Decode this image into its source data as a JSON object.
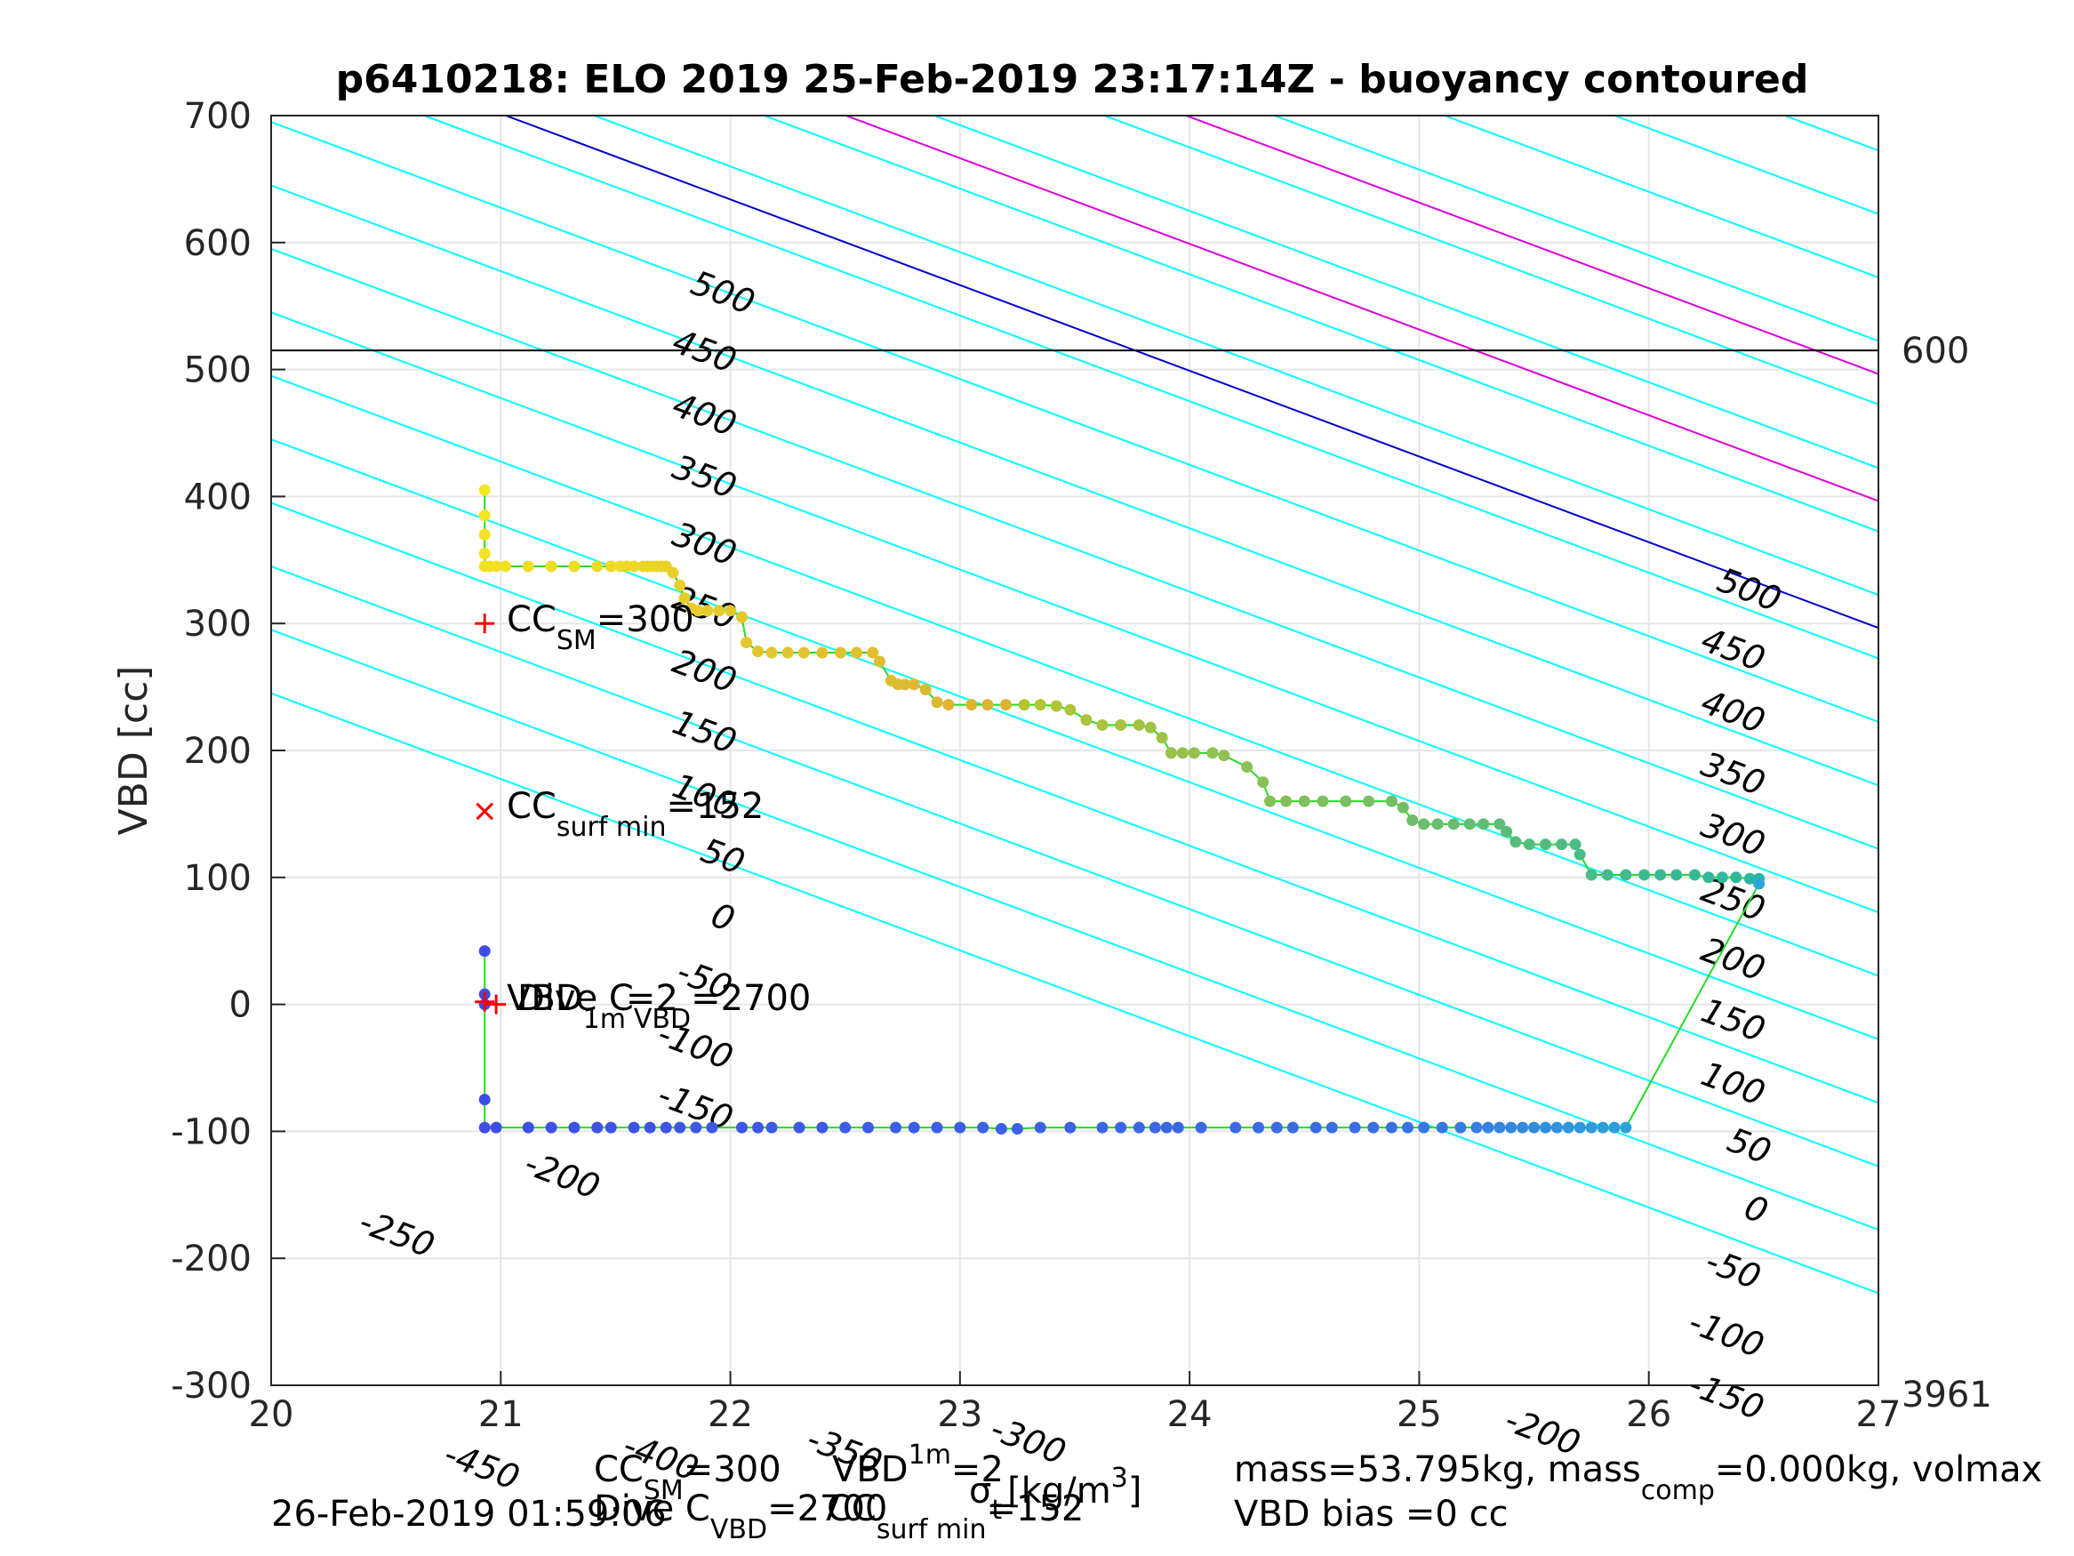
{
  "chart_data": {
    "type": "scatter",
    "title": "p6410218: ELO 2019 25-Feb-2019 23:17:14Z - buoyancy contoured",
    "ylabel": "VBD [cc]",
    "xlabel_parts": {
      "sigma": "σ",
      "t": "t",
      "units": "[kg/m",
      "units_sup": "3",
      "units_close": "]"
    },
    "xlim": [
      20,
      27
    ],
    "ylim": [
      -300,
      700
    ],
    "xticks": [
      20,
      21,
      22,
      23,
      24,
      25,
      26,
      27
    ],
    "yticks": [
      -300,
      -200,
      -100,
      0,
      100,
      200,
      300,
      400,
      500,
      600,
      700
    ],
    "grid": true,
    "contour_slope": -27,
    "contour_intercepts": [
      {
        "c": -450,
        "b0": 245
      },
      {
        "c": -400,
        "b0": 295
      },
      {
        "c": -350,
        "b0": 345
      },
      {
        "c": -300,
        "b0": 395
      },
      {
        "c": -250,
        "b0": 445
      },
      {
        "c": -200,
        "b0": 495
      },
      {
        "c": -150,
        "b0": 545
      },
      {
        "c": -100,
        "b0": 595
      },
      {
        "c": -50,
        "b0": 645
      },
      {
        "c": 0,
        "b0": 695
      },
      {
        "c": 50,
        "b0": 745
      },
      {
        "c": 100,
        "b0": 795
      },
      {
        "c": 150,
        "b0": 845
      },
      {
        "c": 200,
        "b0": 895
      },
      {
        "c": 250,
        "b0": 945
      },
      {
        "c": 300,
        "b0": 995
      },
      {
        "c": 350,
        "b0": 1045
      },
      {
        "c": 400,
        "b0": 1095
      },
      {
        "c": 450,
        "b0": 1145
      },
      {
        "c": 500,
        "b0": 1195
      }
    ],
    "contour_labels_left": [
      {
        "text": "500",
        "x": 21.95,
        "y": 552
      },
      {
        "text": "450",
        "x": 21.87,
        "y": 506
      },
      {
        "text": "400",
        "x": 21.87,
        "y": 456
      },
      {
        "text": "350",
        "x": 21.87,
        "y": 407
      },
      {
        "text": "300",
        "x": 21.87,
        "y": 354
      },
      {
        "text": "250",
        "x": 21.87,
        "y": 304
      },
      {
        "text": "200",
        "x": 21.87,
        "y": 254
      },
      {
        "text": "150",
        "x": 21.87,
        "y": 206
      },
      {
        "text": "100",
        "x": 21.87,
        "y": 156
      },
      {
        "text": "50",
        "x": 21.95,
        "y": 108
      },
      {
        "text": "0",
        "x": 21.95,
        "y": 60
      },
      {
        "text": "-50",
        "x": 21.87,
        "y": 11
      },
      {
        "text": "-100",
        "x": 21.83,
        "y": -41
      },
      {
        "text": "-150",
        "x": 21.83,
        "y": -89
      },
      {
        "text": "-200",
        "x": 21.25,
        "y": -143
      },
      {
        "text": "-250",
        "x": 20.53,
        "y": -189
      },
      {
        "text": "-300",
        "x": 23.28,
        "y": -352
      },
      {
        "text": "-350",
        "x": 22.48,
        "y": -360
      },
      {
        "text": "-400",
        "x": 21.68,
        "y": -365
      },
      {
        "text": "-450",
        "x": 20.9,
        "y": -372
      }
    ],
    "contour_labels_right": [
      {
        "text": "500",
        "x": 26.42,
        "y": 318
      },
      {
        "text": "450",
        "x": 26.35,
        "y": 271
      },
      {
        "text": "400",
        "x": 26.35,
        "y": 222
      },
      {
        "text": "350",
        "x": 26.35,
        "y": 173
      },
      {
        "text": "300",
        "x": 26.35,
        "y": 125
      },
      {
        "text": "250",
        "x": 26.35,
        "y": 74
      },
      {
        "text": "200",
        "x": 26.35,
        "y": 27
      },
      {
        "text": "150",
        "x": 26.35,
        "y": -21
      },
      {
        "text": "100",
        "x": 26.35,
        "y": -71
      },
      {
        "text": "50",
        "x": 26.42,
        "y": -120
      },
      {
        "text": "0",
        "x": 26.45,
        "y": -170
      },
      {
        "text": "-50",
        "x": 26.35,
        "y": -217
      },
      {
        "text": "-100",
        "x": 26.32,
        "y": -268
      },
      {
        "text": "-150",
        "x": 26.32,
        "y": -317
      },
      {
        "text": "-200",
        "x": 25.52,
        "y": -345
      }
    ],
    "highlight_lines": [
      {
        "kind": "magenta",
        "c": 200,
        "b0": 969
      },
      {
        "kind": "magenta",
        "c": 100,
        "b0": 869
      },
      {
        "kind": "blue",
        "c": 0,
        "b0": 769
      }
    ],
    "colors": {
      "contour": "#00ffff",
      "highlight_magenta": "#dd00dd",
      "highlight_blue": "#0000cc",
      "track": "#22dd22",
      "marker_red": "#ff0000",
      "depth_line": "#000000"
    },
    "depth_line": {
      "y": 515,
      "label_top": "600",
      "label_bottom": "3961"
    },
    "markers": [
      {
        "type": "plus",
        "x": 20.93,
        "y": 300
      },
      {
        "type": "x",
        "x": 20.93,
        "y": 152
      },
      {
        "type": "plus",
        "x": 20.93,
        "y": 2
      },
      {
        "type": "plus",
        "x": 20.98,
        "y": 0
      }
    ],
    "annotations": {
      "cc_sm": {
        "pre": "CC",
        "sub": "SM",
        "post": "=300"
      },
      "cc_surf": {
        "pre": "CC",
        "sub": "surf min",
        "post": "=152"
      },
      "vbd": {
        "pre": "VBD",
        "sub": "1m",
        "post": "=2"
      },
      "dive_c": {
        "pre": "Dive C",
        "sub": "VBD",
        "post": "=2700"
      }
    },
    "series": [
      {
        "phase": "climb",
        "x": [
          20.93,
          20.93,
          20.93,
          20.93,
          20.93,
          20.95,
          20.98,
          21.02,
          21.12,
          21.22,
          21.32,
          21.42,
          21.48,
          21.52,
          21.55,
          21.58,
          21.62,
          21.64,
          21.66,
          21.68,
          21.7,
          21.72,
          21.75,
          21.78,
          21.8,
          21.83,
          21.86,
          21.9,
          21.95,
          22.0,
          22.05,
          22.07,
          22.12,
          22.18,
          22.25,
          22.32,
          22.4,
          22.48,
          22.55,
          22.62,
          22.65,
          22.7,
          22.73,
          22.76,
          22.8,
          22.85,
          22.9,
          22.95,
          23.05,
          23.12,
          23.2,
          23.28,
          23.35,
          23.42,
          23.48,
          23.55,
          23.62,
          23.7,
          23.78,
          23.83,
          23.88,
          23.92,
          23.97,
          24.02,
          24.1,
          24.15,
          24.25,
          24.32,
          24.35,
          24.42,
          24.5,
          24.58,
          24.68,
          24.78,
          24.88,
          24.93,
          24.97,
          25.02,
          25.08,
          25.15,
          25.22,
          25.28,
          25.35,
          25.38,
          25.42,
          25.48,
          25.55,
          25.62,
          25.68,
          25.7,
          25.75,
          25.82,
          25.9,
          25.98,
          26.05,
          26.12,
          26.2,
          26.26,
          26.32,
          26.38,
          26.44,
          26.48
        ],
        "y": [
          405,
          385,
          370,
          355,
          345,
          345,
          345,
          345,
          345,
          345,
          345,
          345,
          345,
          345,
          345,
          345,
          345,
          345,
          345,
          345,
          345,
          345,
          340,
          330,
          320,
          312,
          310,
          310,
          310,
          310,
          305,
          285,
          278,
          277,
          277,
          277,
          277,
          277,
          277,
          277,
          270,
          255,
          252,
          252,
          252,
          248,
          238,
          236,
          236,
          236,
          236,
          236,
          236,
          235,
          232,
          224,
          220,
          220,
          220,
          218,
          210,
          198,
          198,
          198,
          198,
          196,
          187,
          175,
          160,
          160,
          160,
          160,
          160,
          160,
          160,
          155,
          145,
          142,
          142,
          142,
          142,
          142,
          142,
          136,
          128,
          126,
          126,
          126,
          126,
          118,
          102,
          102,
          102,
          102,
          102,
          102,
          102,
          100,
          100,
          100,
          99,
          99
        ]
      },
      {
        "phase": "dive",
        "x": [
          20.93,
          20.93,
          20.93,
          20.93,
          20.93,
          20.98,
          21.12,
          21.22,
          21.32,
          21.42,
          21.48,
          21.58,
          21.65,
          21.72,
          21.78,
          21.85,
          21.92,
          22.05,
          22.12,
          22.18,
          22.3,
          22.4,
          22.5,
          22.6,
          22.72,
          22.8,
          22.9,
          23.0,
          23.1,
          23.18,
          23.25,
          23.35,
          23.48,
          23.62,
          23.7,
          23.78,
          23.85,
          23.9,
          23.95,
          24.05,
          24.2,
          24.3,
          24.38,
          24.45,
          24.55,
          24.62,
          24.72,
          24.8,
          24.88,
          24.95,
          25.02,
          25.1,
          25.18,
          25.25,
          25.3,
          25.35,
          25.4,
          25.45,
          25.5,
          25.55,
          25.6,
          25.65,
          25.7,
          25.75,
          25.8,
          25.85,
          25.9,
          26.48
        ],
        "y": [
          42,
          8,
          0,
          -75,
          -97,
          -97,
          -97,
          -97,
          -97,
          -97,
          -97,
          -97,
          -97,
          -97,
          -97,
          -97,
          -97,
          -97,
          -97,
          -97,
          -97,
          -97,
          -97,
          -97,
          -97,
          -97,
          -97,
          -97,
          -97,
          -98,
          -98,
          -97,
          -97,
          -97,
          -97,
          -97,
          -97,
          -97,
          -97,
          -97,
          -97,
          -97,
          -97,
          -97,
          -97,
          -97,
          -97,
          -97,
          -97,
          -97,
          -97,
          -97,
          -97,
          -97,
          -97,
          -97,
          -97,
          -97,
          -97,
          -97,
          -97,
          -97,
          -97,
          -97,
          -97,
          -97,
          -97,
          95
        ]
      }
    ]
  },
  "footer": {
    "timestamp": "26-Feb-2019 01:59:06",
    "mass_line": {
      "pre": "mass=53.795kg, mass",
      "sub": "comp",
      "post": "=0.000kg, volmax"
    },
    "vbd_bias": "VBD bias =0 cc",
    "cc_sm": {
      "pre": "CC",
      "sub": "SM",
      "post": "=300"
    },
    "vbd": {
      "pre": "VBD",
      "sub": "1m",
      "post": "=2"
    },
    "dive_c": {
      "pre": "Dive C",
      "sub": "VBD",
      "post": "=2700"
    },
    "cc_surf": {
      "pre": "CC",
      "sub": "surf min",
      "post": "=152"
    }
  }
}
